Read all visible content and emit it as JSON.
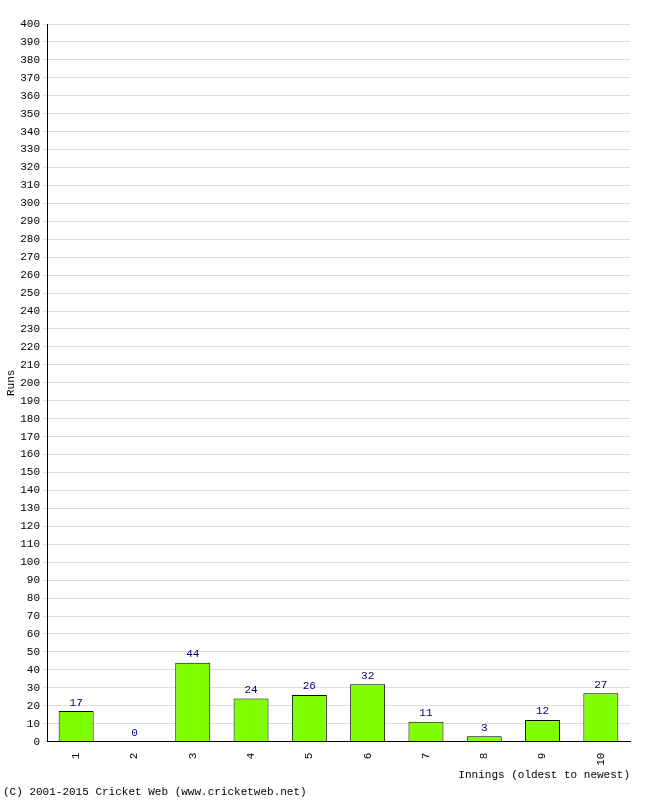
{
  "chart_data": {
    "type": "bar",
    "y_label": "Runs",
    "x_label": "Innings (oldest to newest)",
    "annotations": [
      "(C) 2001-2015 Cricket Web (www.cricketweb.net)"
    ],
    "categories": [
      "1",
      "2",
      "3",
      "4",
      "5",
      "6",
      "7",
      "8",
      "9",
      "10"
    ],
    "values": [
      17,
      0,
      44,
      24,
      26,
      32,
      11,
      3,
      12,
      27
    ],
    "color": "#80ff00",
    "ylim": [
      0,
      400
    ],
    "yticks": [
      0,
      10,
      20,
      30,
      40,
      50,
      60,
      70,
      80,
      90,
      100,
      110,
      120,
      130,
      140,
      150,
      160,
      170,
      180,
      190,
      200,
      210,
      220,
      230,
      240,
      250,
      260,
      270,
      280,
      290,
      300,
      310,
      320,
      330,
      340,
      350,
      360,
      370,
      380,
      390,
      400
    ],
    "grid": true,
    "data_labels": true
  }
}
